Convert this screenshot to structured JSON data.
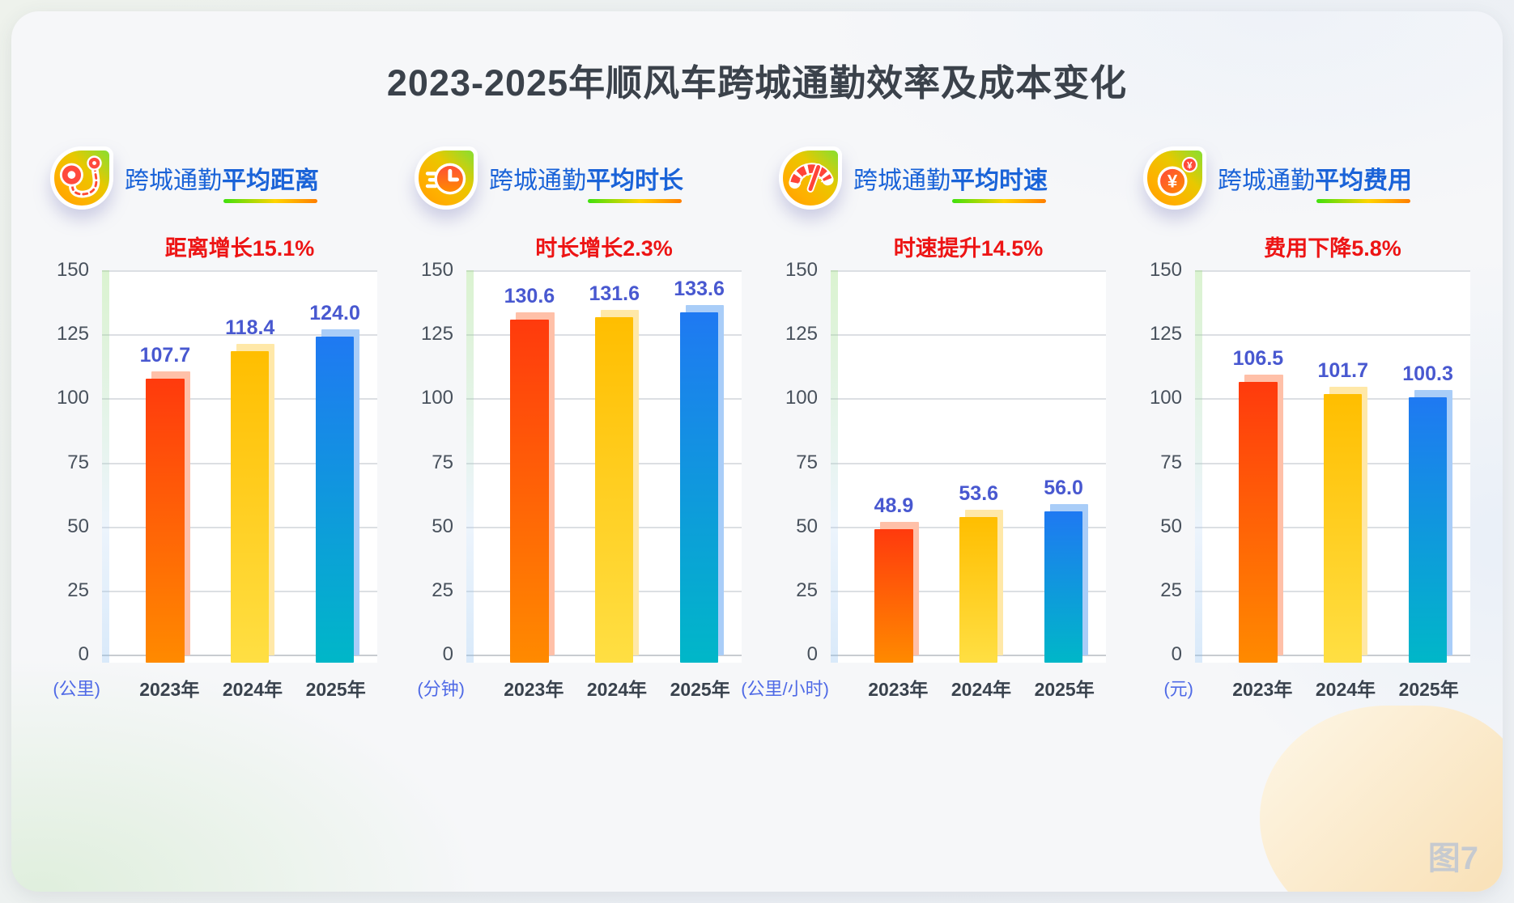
{
  "title": "2023-2025年顺风车跨城通勤效率及成本变化",
  "figure_badge": "图7",
  "colors": {
    "header_blue": "#1a63d8",
    "annotation_red": "#ed1414",
    "value_label_blue": "#4858d0",
    "unit_blue": "#4f6ae6",
    "underline_gradient": [
      "#3fe00e",
      "#ffd400",
      "#ff7e00"
    ],
    "bar_2023": {
      "top": "#ff3a0d",
      "bottom": "#ff8a00",
      "ghost": "#ffc0a8"
    },
    "bar_2024": {
      "top": "#ffbe00",
      "bottom": "#ffdf43",
      "ghost": "#ffe8a8"
    },
    "bar_2025": {
      "top": "#1f79f2",
      "bottom": "#00b7c8",
      "ghost": "#a9cdf8"
    }
  },
  "chart_data": [
    {
      "type": "bar",
      "icon": "route-icon",
      "title_regular": "跨城通勤",
      "title_bold": "平均距离",
      "annotation": "距离增长15.1%",
      "unit": "(公里)",
      "categories": [
        "2023年",
        "2024年",
        "2025年"
      ],
      "values": [
        107.7,
        118.4,
        124.0
      ],
      "ylim": [
        0,
        150
      ],
      "yticks": [
        0,
        25,
        50,
        75,
        100,
        125,
        150
      ],
      "grid": true,
      "legend": "none"
    },
    {
      "type": "bar",
      "icon": "clock-icon",
      "title_regular": "跨城通勤",
      "title_bold": "平均时长",
      "annotation": "时长增长2.3%",
      "unit": "(分钟)",
      "categories": [
        "2023年",
        "2024年",
        "2025年"
      ],
      "values": [
        130.6,
        131.6,
        133.6
      ],
      "ylim": [
        0,
        150
      ],
      "yticks": [
        0,
        25,
        50,
        75,
        100,
        125,
        150
      ],
      "grid": true,
      "legend": "none"
    },
    {
      "type": "bar",
      "icon": "speedometer-icon",
      "title_regular": "跨城通勤",
      "title_bold": "平均时速",
      "annotation": "时速提升14.5%",
      "unit": "(公里/小时)",
      "categories": [
        "2023年",
        "2024年",
        "2025年"
      ],
      "values": [
        48.9,
        53.6,
        56.0
      ],
      "ylim": [
        0,
        150
      ],
      "yticks": [
        0,
        25,
        50,
        75,
        100,
        125,
        150
      ],
      "grid": true,
      "legend": "none"
    },
    {
      "type": "bar",
      "icon": "yuan-icon",
      "title_regular": "跨城通勤",
      "title_bold": "平均费用",
      "annotation": "费用下降5.8%",
      "unit": "(元)",
      "categories": [
        "2023年",
        "2024年",
        "2025年"
      ],
      "values": [
        106.5,
        101.7,
        100.3
      ],
      "ylim": [
        0,
        150
      ],
      "yticks": [
        0,
        25,
        50,
        75,
        100,
        125,
        150
      ],
      "grid": true,
      "legend": "none"
    }
  ]
}
